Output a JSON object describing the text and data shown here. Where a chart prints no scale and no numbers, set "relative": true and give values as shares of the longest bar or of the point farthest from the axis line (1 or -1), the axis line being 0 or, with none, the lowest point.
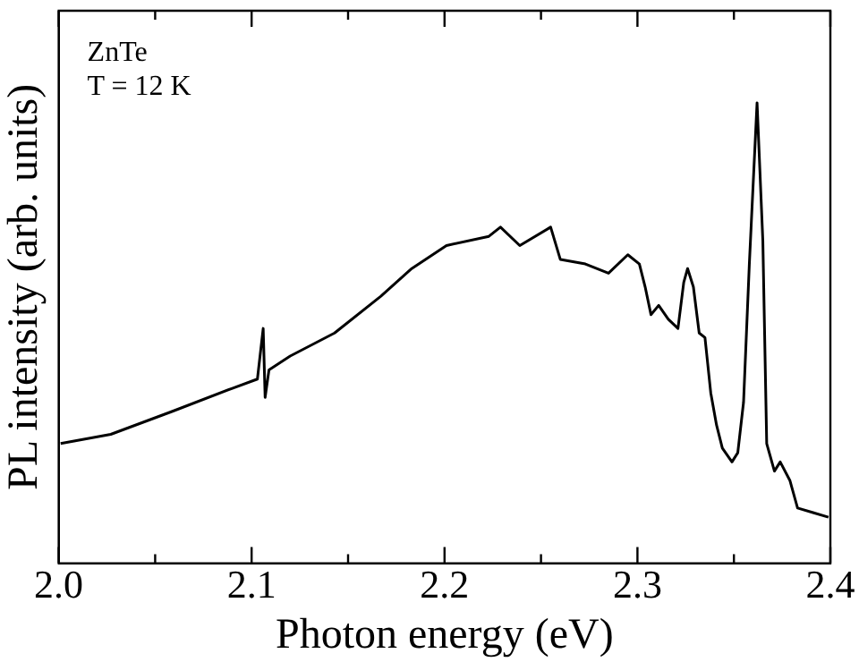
{
  "chart_data": {
    "type": "line",
    "relative": true,
    "xlabel": "Photon energy (eV)",
    "ylabel": "PL intensity (arb. units)",
    "annotations": [
      "ZnTe",
      "T = 12 K"
    ],
    "xlim": [
      2.0,
      2.4
    ],
    "xticks": [
      {
        "value": 2.0,
        "label": "2.0"
      },
      {
        "value": 2.05,
        "label": null
      },
      2.1,
      {
        "value": 2.15,
        "label": null
      },
      2.2,
      {
        "value": 2.25,
        "label": null
      },
      2.3,
      {
        "value": 2.35,
        "label": null
      },
      2.4
    ],
    "grid": false,
    "legend": false,
    "marker": "none",
    "line_style": "solid",
    "series": [
      {
        "color": "#000000",
        "x": [
          2.001,
          2.027,
          2.059,
          2.09,
          2.103,
          2.106,
          2.107,
          2.109,
          2.12,
          2.143,
          2.167,
          2.183,
          2.201,
          2.223,
          2.229,
          2.239,
          2.255,
          2.26,
          2.273,
          2.285,
          2.295,
          2.301,
          2.304,
          2.307,
          2.311,
          2.316,
          2.321,
          2.324,
          2.326,
          2.329,
          2.332,
          2.335,
          2.338,
          2.341,
          2.344,
          2.349,
          2.352,
          2.355,
          2.358,
          2.362,
          2.365,
          2.367,
          2.371,
          2.374,
          2.379,
          2.383,
          2.391,
          2.399
        ],
        "values": [
          0.26,
          0.28,
          0.33,
          0.38,
          0.4,
          0.51,
          0.36,
          0.42,
          0.45,
          0.5,
          0.58,
          0.64,
          0.69,
          0.71,
          0.73,
          0.69,
          0.73,
          0.66,
          0.65,
          0.63,
          0.67,
          0.65,
          0.6,
          0.54,
          0.56,
          0.53,
          0.51,
          0.61,
          0.64,
          0.6,
          0.5,
          0.49,
          0.37,
          0.3,
          0.25,
          0.22,
          0.24,
          0.35,
          0.65,
          1,
          0.7,
          0.26,
          0.2,
          0.22,
          0.18,
          0.12,
          0.11,
          0.1
        ]
      }
    ]
  }
}
